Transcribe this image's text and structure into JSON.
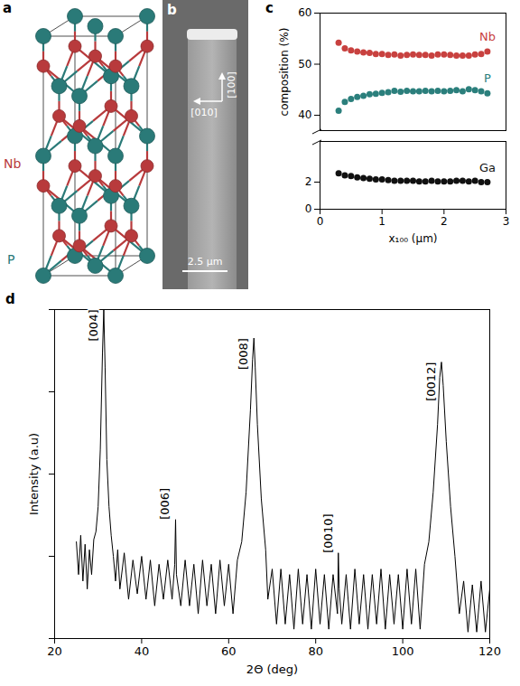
{
  "chart_data": [
    {
      "type": "structure",
      "panel_label": "a",
      "series": [
        {
          "name": "Nb",
          "color": "#b83a3c"
        },
        {
          "name": "P",
          "color": "#2a7a78"
        }
      ]
    },
    {
      "type": "image",
      "panel_label": "b",
      "annotations": [
        {
          "text": "[010]"
        },
        {
          "text": "[100]"
        },
        {
          "text": "2.5 μm"
        }
      ]
    },
    {
      "type": "scatter",
      "panel_label": "c",
      "x_label": "x₁₀₀ (μm)",
      "y_label": "composition (%)",
      "xlim": [
        0,
        3
      ],
      "xticks": [
        0,
        1,
        2,
        3
      ],
      "segments": [
        {
          "ylim": [
            37,
            60
          ],
          "yticks": [
            40,
            50,
            60
          ]
        },
        {
          "ylim": [
            0,
            5
          ],
          "yticks": [
            0,
            2
          ]
        }
      ],
      "marker": "circle",
      "x": [
        0.3,
        0.4,
        0.5,
        0.6,
        0.7,
        0.8,
        0.9,
        1.0,
        1.1,
        1.2,
        1.3,
        1.4,
        1.5,
        1.6,
        1.7,
        1.8,
        1.9,
        2.0,
        2.1,
        2.2,
        2.3,
        2.4,
        2.5,
        2.6,
        2.7
      ],
      "series": [
        {
          "name": "Nb",
          "color": "#c8413f",
          "values": [
            54.2,
            53.1,
            52.7,
            52.5,
            52.3,
            52.2,
            52.0,
            52.0,
            51.8,
            51.9,
            51.7,
            51.8,
            51.9,
            51.8,
            51.8,
            51.7,
            51.9,
            51.9,
            51.8,
            51.7,
            51.7,
            51.7,
            51.9,
            52.0,
            52.5
          ]
        },
        {
          "name": "P",
          "color": "#2b7f7c",
          "values": [
            40.9,
            42.6,
            43.2,
            43.6,
            43.8,
            44.1,
            44.2,
            44.4,
            44.5,
            44.8,
            44.6,
            44.8,
            44.7,
            44.7,
            44.8,
            44.7,
            44.8,
            44.7,
            44.8,
            44.9,
            44.7,
            45.1,
            44.9,
            44.7,
            44.3
          ]
        },
        {
          "name": "Ga",
          "color": "#111111",
          "values": [
            2.65,
            2.5,
            2.45,
            2.35,
            2.3,
            2.25,
            2.2,
            2.2,
            2.15,
            2.1,
            2.1,
            2.1,
            2.1,
            2.05,
            2.05,
            2.1,
            2.05,
            2.05,
            2.05,
            2.1,
            2.1,
            2.05,
            2.1,
            2.0,
            2.0
          ]
        }
      ]
    },
    {
      "type": "line",
      "panel_label": "d",
      "x_label": "2Θ (deg)",
      "y_label": "Intensity (a.u)",
      "log": "y",
      "tick_labels": "x",
      "color": "#000000",
      "xlim": [
        20,
        120
      ],
      "xticks": [
        20,
        40,
        60,
        80,
        100,
        120
      ],
      "ylim": [
        1,
        10000
      ],
      "yticks": [
        1,
        10,
        100,
        1000,
        10000
      ],
      "x": [
        25,
        25.5,
        26,
        26.5,
        27,
        27.5,
        28,
        28.5,
        29,
        29.5,
        30,
        30.5,
        31,
        31.3,
        31.6,
        32,
        32.5,
        33,
        33.5,
        34,
        34.5,
        35,
        36,
        37,
        38,
        39,
        40,
        41,
        42,
        43,
        44,
        45,
        46,
        47,
        47.6,
        47.8,
        48,
        49,
        50,
        51,
        52,
        53,
        54,
        55,
        56,
        57,
        58,
        59,
        60,
        61,
        62,
        63,
        64,
        65,
        65.5,
        65.8,
        66.1,
        66.6,
        67.5,
        68.5,
        69,
        70,
        71,
        72,
        73,
        74,
        75,
        76,
        77,
        78,
        79,
        80,
        81,
        82,
        83,
        84,
        85,
        85.2,
        85.4,
        86,
        87,
        88,
        89,
        90,
        91,
        92,
        93,
        94,
        95,
        96,
        97,
        98,
        99,
        100,
        101,
        102,
        103,
        104,
        105,
        106,
        107,
        108,
        108.5,
        108.9,
        109.3,
        110,
        111,
        112,
        113,
        114,
        115,
        116,
        117,
        118,
        119,
        120
      ],
      "values": [
        15,
        6,
        18,
        5,
        14,
        4,
        12,
        6,
        16,
        20,
        40,
        200,
        3000,
        10000,
        2000,
        150,
        40,
        18,
        10,
        5,
        12,
        4,
        11,
        3,
        9,
        3.5,
        10,
        3,
        9,
        2.5,
        8,
        3,
        9,
        3,
        8,
        28,
        6,
        2.5,
        9,
        2.5,
        8,
        2,
        9,
        2.5,
        8,
        2,
        9,
        2.5,
        8,
        2,
        9,
        15,
        60,
        600,
        2500,
        4500,
        2000,
        400,
        50,
        12,
        3,
        7,
        1.5,
        7,
        1.5,
        6,
        1.3,
        7,
        1.5,
        6,
        1.3,
        7,
        1.5,
        6,
        1.3,
        6,
        2,
        11,
        4,
        1.5,
        6,
        1.3,
        7,
        1.5,
        6,
        1.3,
        6,
        1.5,
        7,
        1.3,
        6,
        1.5,
        6,
        1.3,
        7,
        1.5,
        7,
        1.3,
        8,
        15,
        60,
        400,
        1500,
        2300,
        1200,
        250,
        40,
        10,
        2,
        5,
        1.2,
        4.5,
        1.2,
        5,
        1.2,
        4
      ],
      "annotations": [
        {
          "text": "[004]",
          "x": 31.3,
          "y": 10000
        },
        {
          "text": "[006]",
          "x": 47.8,
          "y": 28
        },
        {
          "text": "[008]",
          "x": 65.8,
          "y": 4500
        },
        {
          "text": "[0010]",
          "x": 85.2,
          "y": 11
        },
        {
          "text": "[0012]",
          "x": 108.9,
          "y": 2300
        }
      ]
    }
  ]
}
